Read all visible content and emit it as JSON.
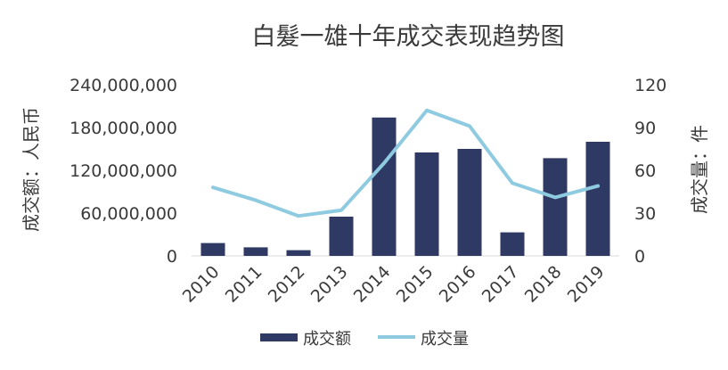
{
  "chart_data": {
    "type": "bar",
    "title": "白髮一雄十年成交表现趋势图",
    "categories": [
      "2010",
      "2011",
      "2012",
      "2013",
      "2014",
      "2015",
      "2016",
      "2017",
      "2018",
      "2019"
    ],
    "series": [
      {
        "name": "成交额",
        "type": "bar",
        "axis": "left",
        "color": "#2e3a63",
        "values": [
          18000000,
          12000000,
          8000000,
          55000000,
          194000000,
          145000000,
          150000000,
          33000000,
          137000000,
          160000000
        ]
      },
      {
        "name": "成交量",
        "type": "line",
        "axis": "right",
        "color": "#8fcbe0",
        "values": [
          48,
          39,
          28,
          32,
          65,
          102,
          91,
          51,
          41,
          49
        ]
      }
    ],
    "ylabel": "成交额：人民币",
    "y2label": "成交量：件",
    "ylim": [
      0,
      240000000
    ],
    "y2lim": [
      0,
      120
    ],
    "yticks": [
      "0",
      "60,000,000",
      "120,000,000",
      "180,000,000",
      "240,000,000"
    ],
    "y2ticks": [
      "0",
      "30",
      "60",
      "90",
      "120"
    ],
    "legend_position": "bottom",
    "grid": false
  }
}
